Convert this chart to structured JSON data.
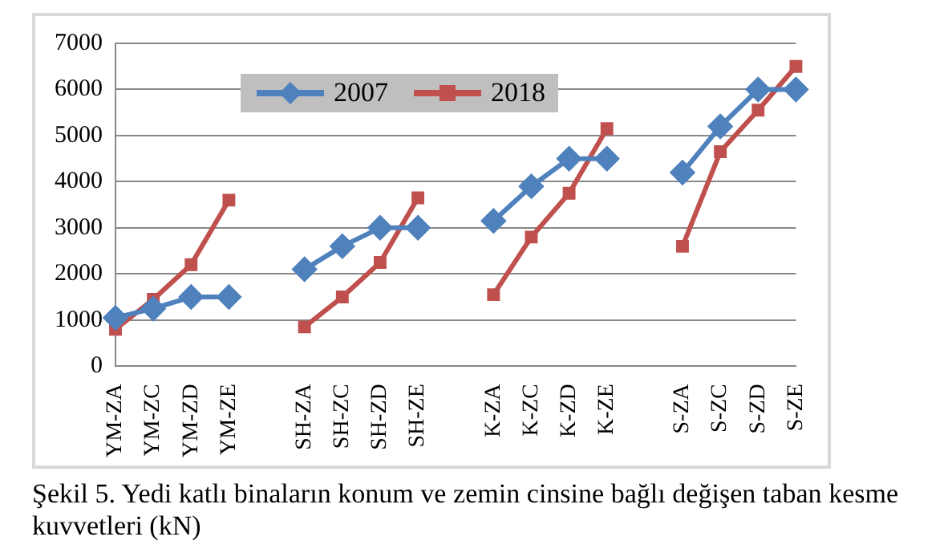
{
  "chart_data": {
    "type": "line",
    "title": "Şekil 5. Yedi katlı binaların konum ve zemin cinsine bağlı değişen taban kesme kuvvetleri (kN)",
    "categories": [
      "YM-ZA",
      "YM-ZC",
      "YM-ZD",
      "YM-ZE",
      null,
      "SH-ZA",
      "SH-ZC",
      "SH-ZD",
      "SH-ZE",
      null,
      "K-ZA",
      "K-ZC",
      "K-ZD",
      "K-ZE",
      null,
      "S-ZA",
      "S-ZC",
      "S-ZD",
      "S-ZE"
    ],
    "series": [
      {
        "name": "2007",
        "color": "#4f81bd",
        "marker": "diamond",
        "values": [
          1050,
          1250,
          1500,
          1500,
          null,
          2100,
          2600,
          3000,
          3000,
          null,
          3150,
          3900,
          4500,
          4500,
          null,
          4200,
          5200,
          6000,
          6000
        ]
      },
      {
        "name": "2018",
        "color": "#c0504d",
        "marker": "square",
        "values": [
          800,
          1450,
          2200,
          3600,
          null,
          850,
          1500,
          2250,
          3650,
          null,
          1550,
          2800,
          3750,
          5150,
          null,
          2600,
          4650,
          5550,
          6500
        ]
      }
    ],
    "ylim": [
      0,
      7000
    ],
    "yticks": [
      0,
      1000,
      2000,
      3000,
      4000,
      5000,
      6000,
      7000
    ],
    "grid": "y",
    "legend": "top left"
  }
}
